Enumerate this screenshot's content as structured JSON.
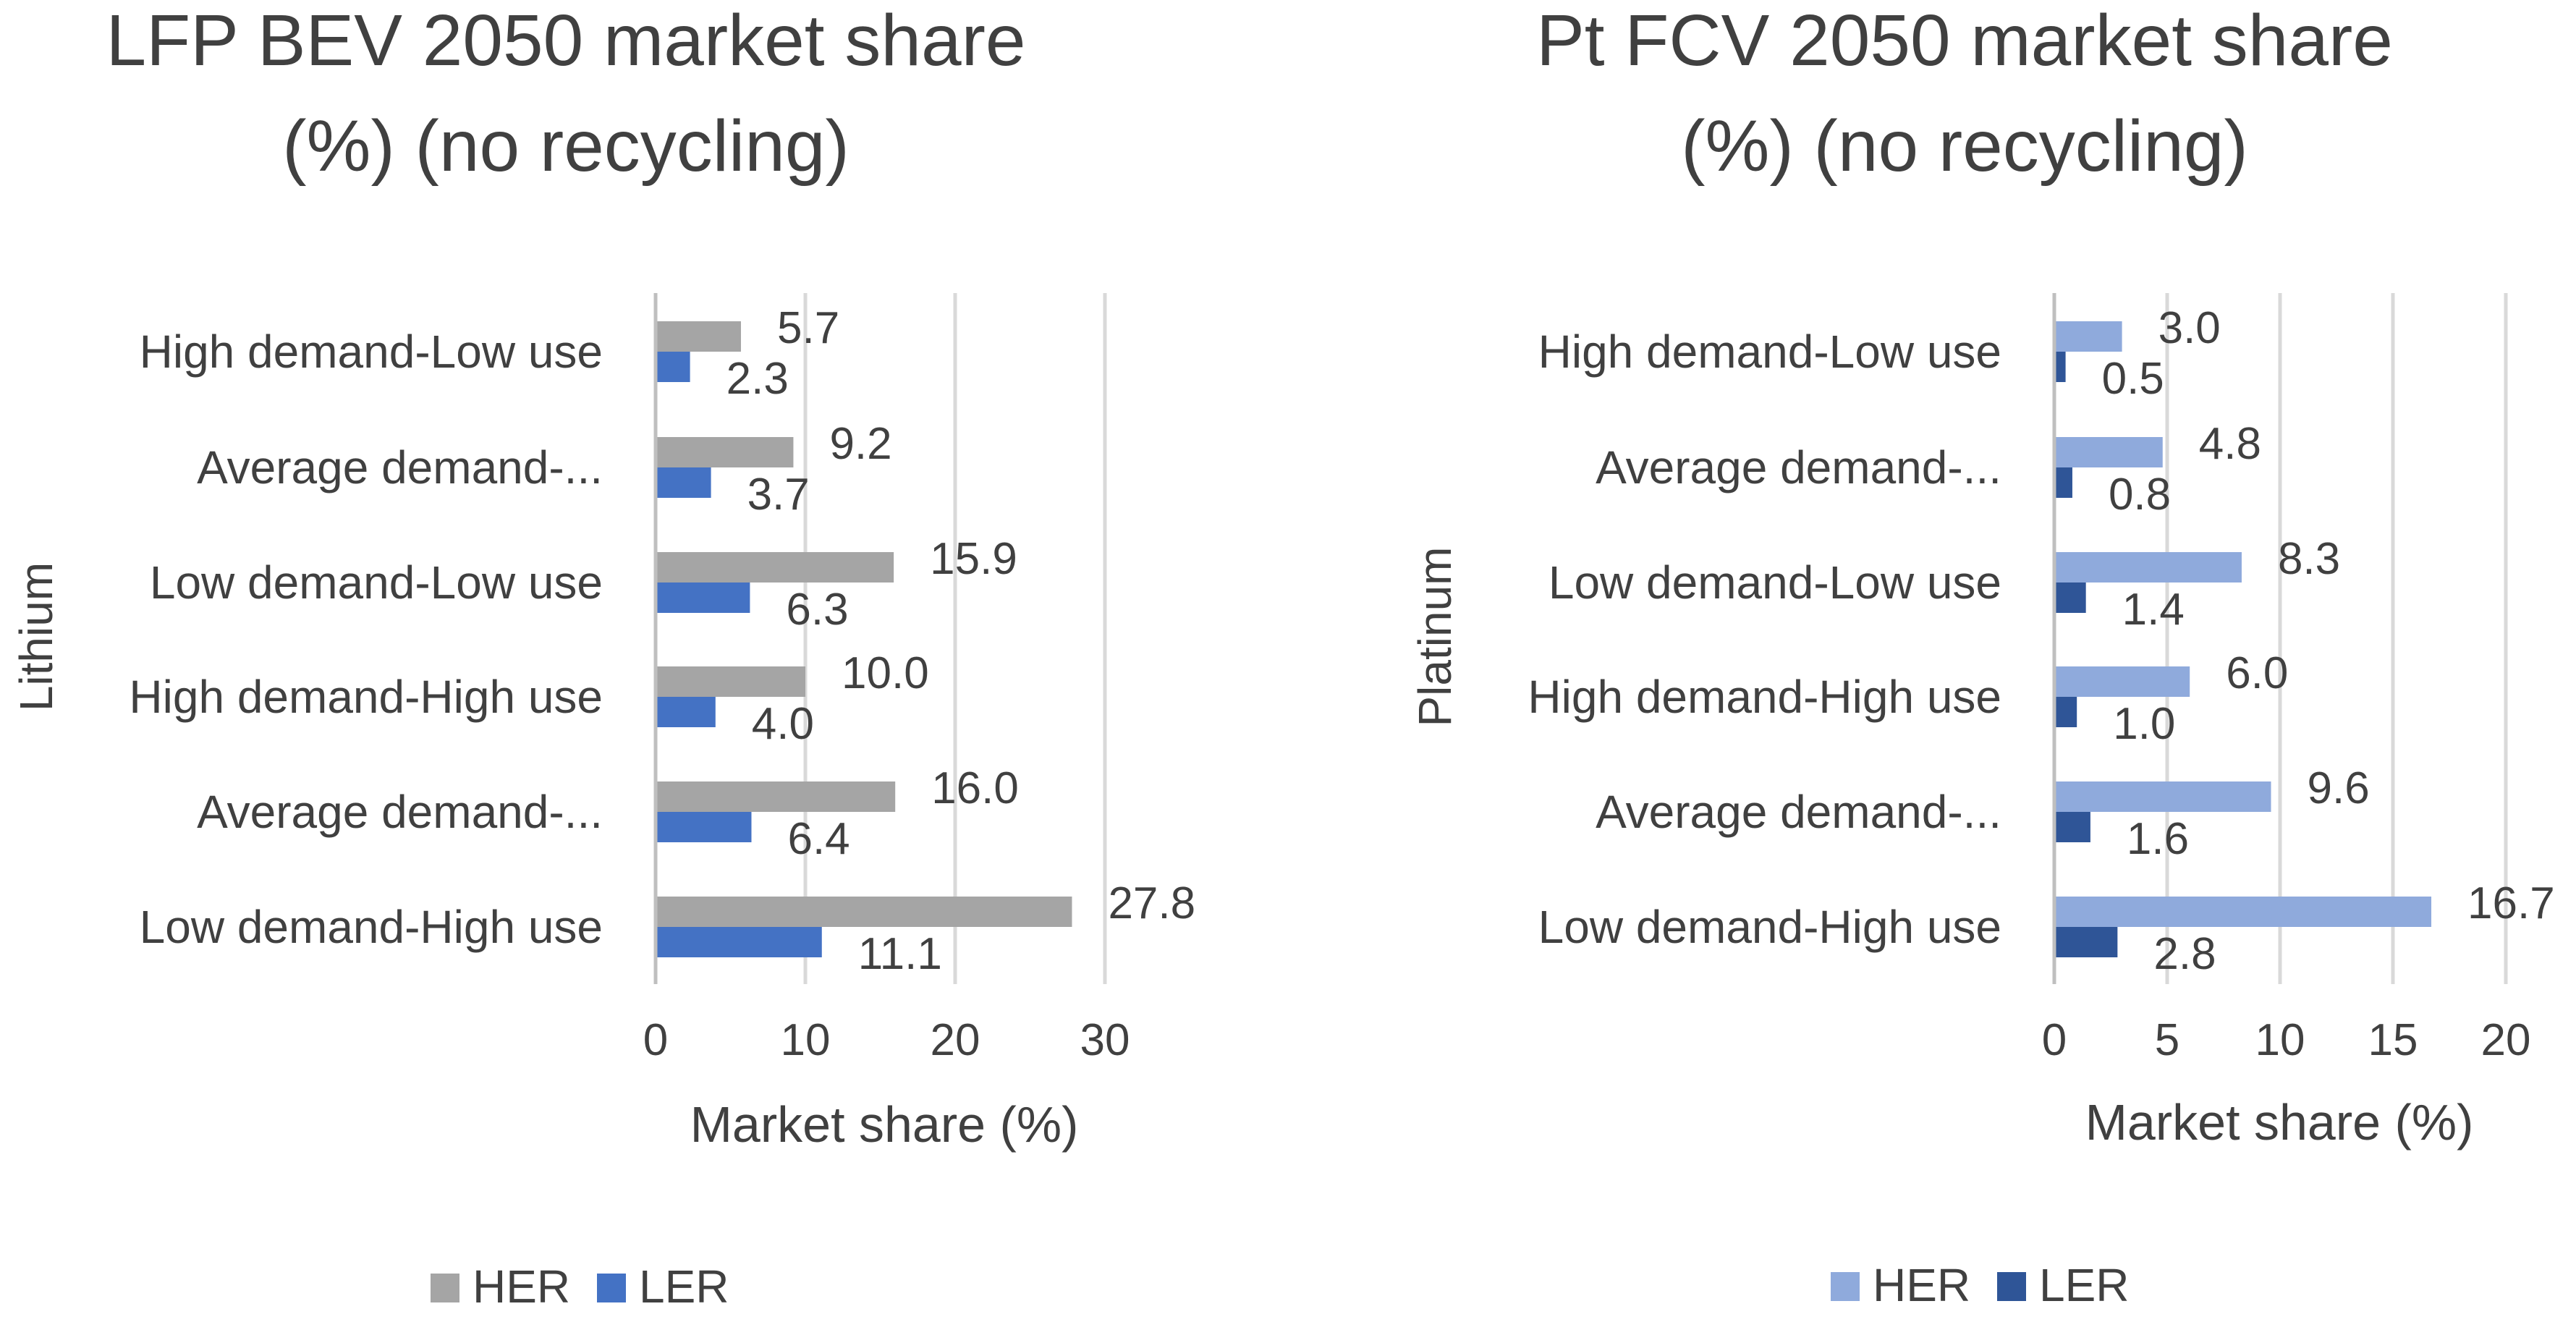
{
  "chart_data": [
    {
      "type": "bar",
      "orientation": "horizontal",
      "title_lines": [
        "LFP BEV 2050 market share",
        "(%) (no recycling)"
      ],
      "ylabel": "Lithium",
      "xlabel": "Market share (%)",
      "categories": [
        "High demand-Low use",
        "Average demand-...",
        "Low demand-Low use",
        "High demand-High use",
        "Average demand-...",
        "Low demand-High use"
      ],
      "series": [
        {
          "name": "HER",
          "color": "#a5a5a5",
          "values": [
            5.7,
            9.2,
            15.9,
            10.0,
            16.0,
            27.8
          ],
          "labels": [
            "5.7",
            "9.2",
            "15.9",
            "10.0",
            "16.0",
            "27.8"
          ]
        },
        {
          "name": "LER",
          "color": "#4472c4",
          "values": [
            2.3,
            3.7,
            6.3,
            4.0,
            6.4,
            11.1
          ],
          "labels": [
            "2.3",
            "3.7",
            "6.3",
            "4.0",
            "6.4",
            "11.1"
          ]
        }
      ],
      "xticks": [
        0,
        10,
        20,
        30
      ],
      "xlim": [
        0,
        30
      ],
      "grid": true,
      "legend": "bottom"
    },
    {
      "type": "bar",
      "orientation": "horizontal",
      "title_lines": [
        "Pt FCV 2050 market share",
        "(%) (no recycling)"
      ],
      "ylabel": "Platinum",
      "xlabel": "Market share (%)",
      "categories": [
        "High demand-Low use",
        "Average demand-...",
        "Low demand-Low use",
        "High demand-High use",
        "Average demand-...",
        "Low demand-High use"
      ],
      "series": [
        {
          "name": "HER",
          "color": "#8faadc",
          "values": [
            3.0,
            4.8,
            8.3,
            6.0,
            9.6,
            16.7
          ],
          "labels": [
            "3.0",
            "4.8",
            "8.3",
            "6.0",
            "9.6",
            "16.7"
          ]
        },
        {
          "name": "LER",
          "color": "#2f5597",
          "values": [
            0.5,
            0.8,
            1.4,
            1.0,
            1.6,
            2.8
          ],
          "labels": [
            "0.5",
            "0.8",
            "1.4",
            "1.0",
            "1.6",
            "2.8"
          ]
        }
      ],
      "xticks": [
        0,
        5,
        10,
        15,
        20
      ],
      "xlim": [
        0,
        20
      ],
      "grid": true,
      "legend": "bottom"
    }
  ]
}
